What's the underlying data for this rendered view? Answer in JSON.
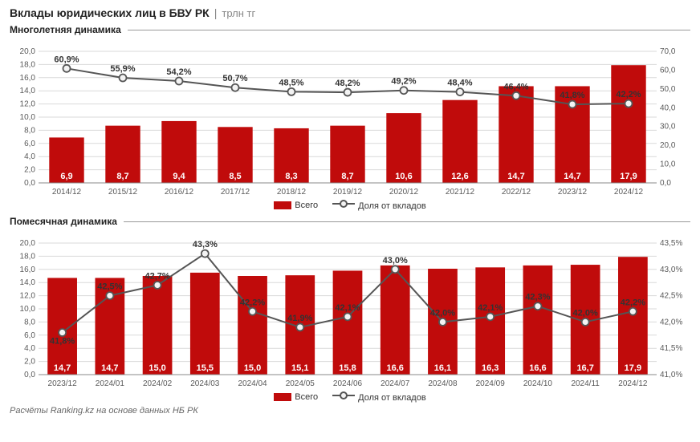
{
  "title": "Вклады юридических лиц в БВУ РК",
  "unit": "трлн тг",
  "legend": {
    "bars": "Всего",
    "line": "Доля от вкладов"
  },
  "footer": "Расчёты Ranking.kz на основе данных НБ РК",
  "colors": {
    "bar": "#c00b0b",
    "line": "#555555",
    "marker_fill": "#f3f3f3",
    "marker_stroke": "#555555",
    "grid": "#d9d9d9",
    "axis_text": "#595959",
    "bar_value_text": "#ffffff",
    "line_value_text": "#333333",
    "background": "#ffffff"
  },
  "chart1": {
    "title": "Многолетняя динамика",
    "categories": [
      "2014/12",
      "2015/12",
      "2016/12",
      "2017/12",
      "2018/12",
      "2019/12",
      "2020/12",
      "2021/12",
      "2022/12",
      "2023/12",
      "2024/12"
    ],
    "bar_values": [
      6.9,
      8.7,
      9.4,
      8.5,
      8.3,
      8.7,
      10.6,
      12.6,
      14.7,
      14.7,
      17.9
    ],
    "bar_labels": [
      "6,9",
      "8,7",
      "9,4",
      "8,5",
      "8,3",
      "8,7",
      "10,6",
      "12,6",
      "14,7",
      "14,7",
      "17,9"
    ],
    "line_values": [
      60.9,
      55.9,
      54.2,
      50.7,
      48.5,
      48.2,
      49.2,
      48.4,
      46.4,
      41.8,
      42.2
    ],
    "line_labels": [
      "60,9%",
      "55,9%",
      "54,2%",
      "50,7%",
      "48,5%",
      "48,2%",
      "49,2%",
      "48,4%",
      "46,4%",
      "41,8%",
      "42,2%"
    ],
    "y_left": {
      "min": 0,
      "max": 20,
      "step": 2,
      "ticks": [
        "0,0",
        "2,0",
        "4,0",
        "6,0",
        "8,0",
        "10,0",
        "12,0",
        "14,0",
        "16,0",
        "18,0",
        "20,0"
      ]
    },
    "y_right": {
      "min": 0,
      "max": 70,
      "step": 10,
      "ticks": [
        "0,0",
        "10,0",
        "20,0",
        "30,0",
        "40,0",
        "50,0",
        "60,0",
        "70,0"
      ]
    },
    "bar_width_ratio": 0.62,
    "line_width": 2,
    "marker_radius": 4.5,
    "axis_fontsize": 10,
    "value_fontsize": 11,
    "value_fontweight": "bold"
  },
  "chart2": {
    "title": "Помесячная динамика",
    "categories": [
      "2023/12",
      "2024/01",
      "2024/02",
      "2024/03",
      "2024/04",
      "2024/05",
      "2024/06",
      "2024/07",
      "2024/08",
      "2024/09",
      "2024/10",
      "2024/11",
      "2024/12"
    ],
    "bar_values": [
      14.7,
      14.7,
      15.0,
      15.5,
      15.0,
      15.1,
      15.8,
      16.6,
      16.1,
      16.3,
      16.6,
      16.7,
      17.9
    ],
    "bar_labels": [
      "14,7",
      "14,7",
      "15,0",
      "15,5",
      "15,0",
      "15,1",
      "15,8",
      "16,6",
      "16,1",
      "16,3",
      "16,6",
      "16,7",
      "17,9"
    ],
    "line_values": [
      41.8,
      42.5,
      42.7,
      43.3,
      42.2,
      41.9,
      42.1,
      43.0,
      42.0,
      42.1,
      42.3,
      42.0,
      42.2
    ],
    "line_labels": [
      "41,8%",
      "42,5%",
      "42,7%",
      "43,3%",
      "42,2%",
      "41,9%",
      "42,1%",
      "43,0%",
      "42,0%",
      "42,1%",
      "42,3%",
      "42,0%",
      "42,2%"
    ],
    "y_left": {
      "min": 0,
      "max": 20,
      "step": 2,
      "ticks": [
        "0,0",
        "2,0",
        "4,0",
        "6,0",
        "8,0",
        "10,0",
        "12,0",
        "14,0",
        "16,0",
        "18,0",
        "20,0"
      ]
    },
    "y_right": {
      "min": 41.0,
      "max": 43.5,
      "step": 0.5,
      "ticks": [
        "41,0%",
        "41,5%",
        "42,0%",
        "42,5%",
        "43,0%",
        "43,5%"
      ]
    },
    "bar_width_ratio": 0.62,
    "line_width": 2,
    "marker_radius": 4.5,
    "axis_fontsize": 10,
    "value_fontsize": 11,
    "value_fontweight": "bold"
  }
}
